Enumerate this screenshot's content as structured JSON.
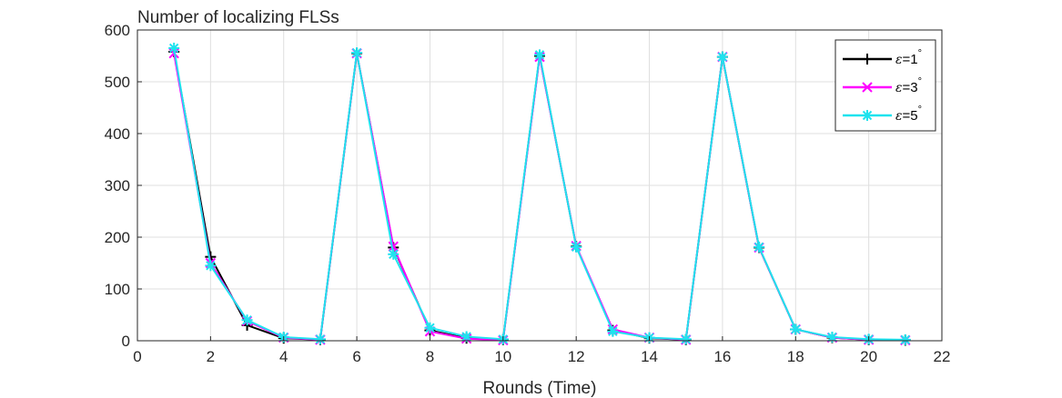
{
  "chart_data": {
    "type": "line",
    "title": "Number of localizing FLSs",
    "xlabel": "Rounds (Time)",
    "ylabel": "",
    "xlim": [
      0,
      22
    ],
    "ylim": [
      0,
      600
    ],
    "xticks": [
      0,
      2,
      4,
      6,
      8,
      10,
      12,
      14,
      16,
      18,
      20,
      22
    ],
    "yticks": [
      0,
      100,
      200,
      300,
      400,
      500,
      600
    ],
    "grid": true,
    "legend_position": "top-right",
    "series": [
      {
        "name": "ε=1°",
        "legend_base": "=1",
        "color": "#000000",
        "marker": "plus",
        "x": [
          1,
          2,
          3,
          4,
          5,
          6,
          7,
          8,
          9,
          10,
          11,
          12,
          13,
          14,
          15,
          16,
          17,
          18,
          19,
          20,
          21
        ],
        "values": [
          558,
          162,
          30,
          5,
          2,
          555,
          180,
          20,
          5,
          2,
          550,
          182,
          20,
          5,
          2,
          548,
          180,
          22,
          6,
          2,
          1
        ]
      },
      {
        "name": "ε=3°",
        "legend_base": "=3",
        "color": "#ff00ff",
        "marker": "x",
        "x": [
          1,
          2,
          3,
          4,
          5,
          6,
          7,
          8,
          9,
          10,
          11,
          12,
          13,
          14,
          15,
          16,
          17,
          18,
          19,
          20,
          21
        ],
        "values": [
          555,
          150,
          38,
          6,
          2,
          555,
          182,
          18,
          4,
          1,
          548,
          183,
          22,
          6,
          2,
          548,
          180,
          22,
          6,
          2,
          1
        ]
      },
      {
        "name": "ε=5°",
        "legend_base": "=5",
        "color": "#1fe3ee",
        "marker": "asterisk",
        "x": [
          1,
          2,
          3,
          4,
          5,
          6,
          7,
          8,
          9,
          10,
          11,
          12,
          13,
          14,
          15,
          16,
          17,
          18,
          19,
          20,
          21
        ],
        "values": [
          565,
          145,
          40,
          7,
          3,
          556,
          167,
          25,
          8,
          3,
          552,
          181,
          18,
          6,
          3,
          548,
          181,
          22,
          7,
          3,
          2
        ]
      }
    ]
  }
}
